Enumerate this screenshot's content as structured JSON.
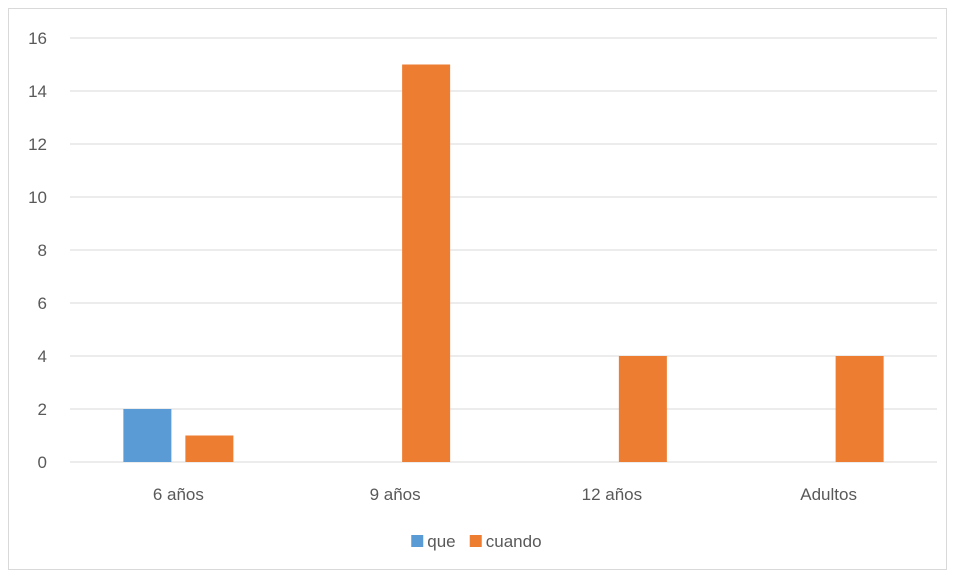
{
  "chart_data": {
    "type": "bar",
    "title": "",
    "xlabel": "",
    "ylabel": "",
    "categories": [
      "6 años",
      "9 años",
      "12 años",
      "Adultos"
    ],
    "series": [
      {
        "name": "que",
        "values": [
          2,
          0,
          0,
          0
        ],
        "color": "#5B9BD5"
      },
      {
        "name": "cuando",
        "values": [
          1,
          15,
          4,
          4
        ],
        "color": "#ED7D31"
      }
    ],
    "ylim": [
      0,
      16
    ],
    "yticks": [
      0,
      2,
      4,
      6,
      8,
      10,
      12,
      14,
      16
    ],
    "grid": true,
    "legend_position": "bottom",
    "colors": {
      "gridline": "#d9d9d9",
      "text": "#595959"
    }
  }
}
